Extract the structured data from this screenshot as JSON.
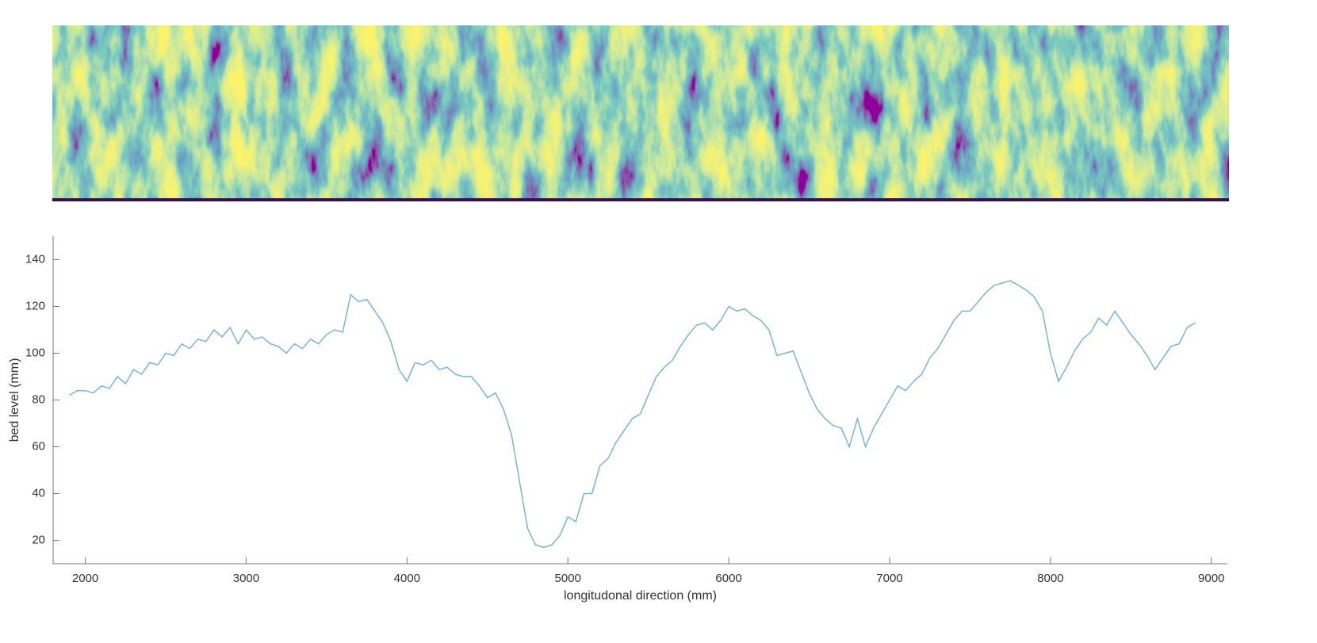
{
  "chart_data": {
    "type": "line",
    "xlabel": "longitudonal direction (mm)",
    "ylabel": "bed level (mm)",
    "x": [
      1900,
      1950,
      2000,
      2050,
      2100,
      2150,
      2200,
      2250,
      2300,
      2350,
      2400,
      2450,
      2500,
      2550,
      2600,
      2650,
      2700,
      2750,
      2800,
      2850,
      2900,
      2950,
      3000,
      3050,
      3100,
      3150,
      3200,
      3250,
      3300,
      3350,
      3400,
      3450,
      3500,
      3550,
      3600,
      3650,
      3700,
      3750,
      3800,
      3850,
      3900,
      3950,
      4000,
      4050,
      4100,
      4150,
      4200,
      4250,
      4300,
      4350,
      4400,
      4450,
      4500,
      4550,
      4600,
      4650,
      4700,
      4750,
      4800,
      4850,
      4900,
      4950,
      5000,
      5050,
      5100,
      5150,
      5200,
      5250,
      5300,
      5350,
      5400,
      5450,
      5500,
      5550,
      5600,
      5650,
      5700,
      5750,
      5800,
      5850,
      5900,
      5950,
      6000,
      6050,
      6100,
      6150,
      6200,
      6250,
      6300,
      6350,
      6400,
      6450,
      6500,
      6550,
      6600,
      6650,
      6700,
      6750,
      6800,
      6850,
      6900,
      6950,
      7000,
      7050,
      7100,
      7150,
      7200,
      7250,
      7300,
      7350,
      7400,
      7450,
      7500,
      7550,
      7600,
      7650,
      7700,
      7750,
      7800,
      7850,
      7900,
      7950,
      8000,
      8050,
      8100,
      8150,
      8200,
      8250,
      8300,
      8350,
      8400,
      8450,
      8500,
      8550,
      8600,
      8650,
      8700,
      8750,
      8800,
      8850,
      8900
    ],
    "values": [
      82,
      84,
      84,
      83,
      86,
      85,
      90,
      87,
      93,
      91,
      96,
      95,
      100,
      99,
      104,
      102,
      106,
      105,
      110,
      107,
      111,
      104,
      110,
      106,
      107,
      104,
      103,
      100,
      104,
      102,
      106,
      104,
      108,
      110,
      109,
      125,
      122,
      123,
      118,
      113,
      105,
      93,
      88,
      96,
      95,
      97,
      93,
      94,
      91,
      90,
      90,
      86,
      81,
      83,
      76,
      65,
      45,
      25,
      18,
      17,
      18,
      22,
      30,
      28,
      40,
      40,
      52,
      55,
      62,
      67,
      72,
      74,
      82,
      90,
      94,
      97,
      103,
      108,
      112,
      113,
      110,
      114,
      120,
      118,
      119,
      116,
      114,
      110,
      99,
      100,
      101,
      92,
      83,
      76,
      72,
      69,
      68,
      60,
      72,
      60,
      68,
      74,
      80,
      86,
      84,
      88,
      91,
      98,
      102,
      108,
      114,
      118,
      118,
      122,
      126,
      129,
      130,
      131,
      129,
      127,
      124,
      118,
      100,
      88,
      94,
      101,
      106,
      109,
      115,
      112,
      118,
      113,
      108,
      104,
      99,
      93,
      98,
      103,
      104,
      111,
      113
    ],
    "color": "#79b4d6",
    "xlim": [
      1800,
      9100
    ],
    "ylim": [
      10,
      150
    ],
    "xticks": [
      2000,
      3000,
      4000,
      5000,
      6000,
      7000,
      8000,
      9000
    ],
    "yticks": [
      20,
      40,
      60,
      80,
      100,
      120,
      140
    ]
  }
}
